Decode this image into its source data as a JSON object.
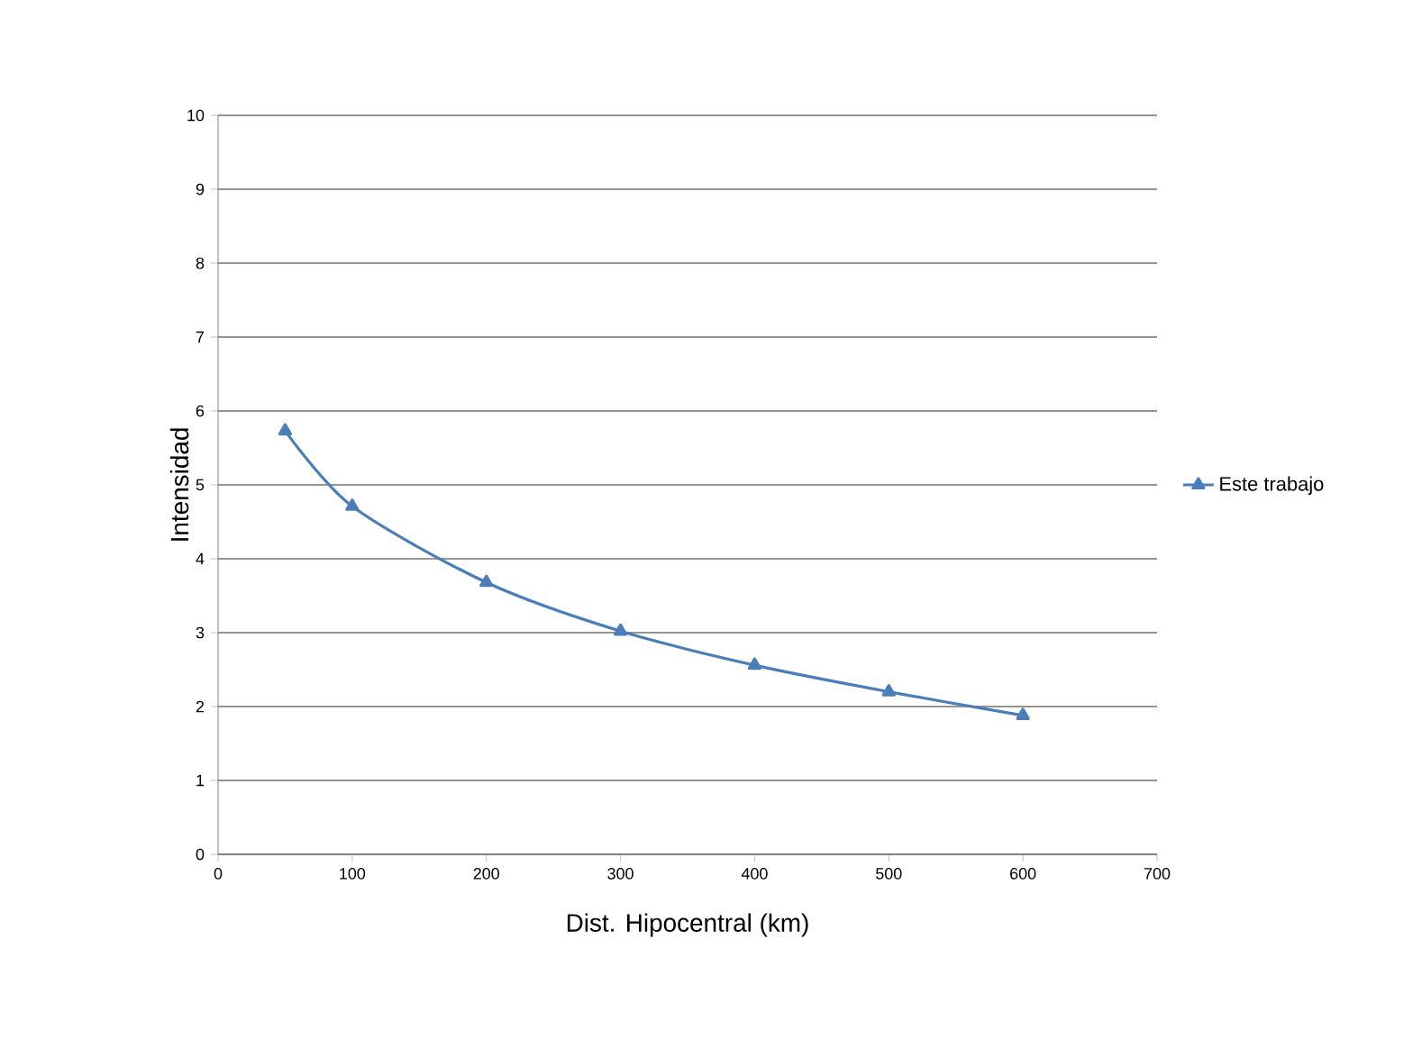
{
  "chart_data": {
    "type": "line",
    "xlabel": "Dist. Hipocentral (km)",
    "ylabel": "Intensidad",
    "x": [
      50,
      100,
      200,
      300,
      400,
      500,
      600
    ],
    "series": [
      {
        "name": "Este trabajo",
        "color": "#4a7ebb",
        "values": [
          5.73,
          4.71,
          3.68,
          3.02,
          2.56,
          2.2,
          1.88
        ]
      }
    ],
    "xlim": [
      0,
      700
    ],
    "xticks": [
      0,
      100,
      200,
      300,
      400,
      500,
      600,
      700
    ],
    "ylim": [
      0,
      10
    ],
    "yticks": [
      0,
      1,
      2,
      3,
      4,
      5,
      6,
      7,
      8,
      9,
      10
    ],
    "grid": "y",
    "legend": "right",
    "marker": "triangle",
    "line_style": "solid"
  }
}
